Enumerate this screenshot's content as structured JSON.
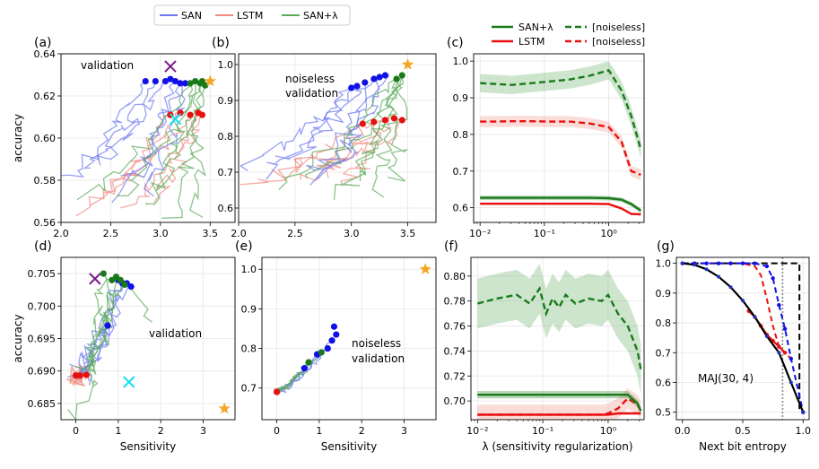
{
  "chart_data": {
    "type": "line",
    "legend_top": [
      {
        "name": "SAN",
        "color": "#6b78f0"
      },
      {
        "name": "LSTM",
        "color": "#f08a80"
      },
      {
        "name": "SAN+λ",
        "color": "#5aaa5a"
      }
    ],
    "colors": {
      "san": "#6b78f0",
      "lstm": "#f08a80",
      "sanl": "#5aaa5a",
      "blue": "#1010e8",
      "red": "#e81010",
      "green": "#1a7a1a",
      "orange": "#f5a623",
      "purple": "#7a1a8a",
      "cyan": "#17e0ee"
    },
    "panels": [
      {
        "id": "a",
        "label": "(a)",
        "annotation": "validation",
        "xlim": [
          2.0,
          3.75
        ],
        "ylim": [
          0.56,
          0.64
        ],
        "xticks": [
          "2.0",
          "2.5",
          "3.0",
          "3.5"
        ],
        "xtick_values": [
          2.0,
          2.5,
          3.0,
          3.5
        ],
        "yticks": [
          "0.56",
          "0.58",
          "0.60",
          "0.62",
          "0.64"
        ],
        "ytick_values": [
          0.56,
          0.58,
          0.6,
          0.62,
          0.64
        ],
        "ylabel": "accuracy",
        "xlabel": "",
        "points_blue": [
          [
            2.85,
            0.627
          ],
          [
            2.95,
            0.627
          ],
          [
            3.05,
            0.627
          ],
          [
            3.15,
            0.627
          ],
          [
            3.2,
            0.626
          ],
          [
            3.25,
            0.626
          ],
          [
            3.1,
            0.628
          ]
        ],
        "points_red": [
          [
            3.1,
            0.611
          ],
          [
            3.2,
            0.612
          ],
          [
            3.3,
            0.611
          ],
          [
            3.38,
            0.612
          ],
          [
            3.42,
            0.611
          ]
        ],
        "points_green": [
          [
            3.35,
            0.627
          ],
          [
            3.4,
            0.626
          ],
          [
            3.45,
            0.625
          ],
          [
            3.3,
            0.626
          ],
          [
            3.42,
            0.627
          ]
        ],
        "star": [
          3.5,
          0.627
        ],
        "x_purple": [
          3.1,
          0.634
        ],
        "x_cyan": [
          3.15,
          0.609
        ]
      },
      {
        "id": "b",
        "label": "(b)",
        "annotation": "noiseless validation",
        "xlim": [
          2.0,
          3.75
        ],
        "ylim": [
          0.56,
          1.03
        ],
        "xticks": [
          "2.0",
          "2.5",
          "3.0",
          "3.5"
        ],
        "xtick_values": [
          2.0,
          2.5,
          3.0,
          3.5
        ],
        "yticks": [
          "0.6",
          "0.7",
          "0.8",
          "0.9",
          "1.0"
        ],
        "ytick_values": [
          0.6,
          0.7,
          0.8,
          0.9,
          1.0
        ],
        "ylabel": "",
        "xlabel": "",
        "points_blue": [
          [
            3.0,
            0.935
          ],
          [
            3.05,
            0.94
          ],
          [
            3.12,
            0.95
          ],
          [
            3.2,
            0.96
          ],
          [
            3.25,
            0.965
          ],
          [
            3.3,
            0.97
          ]
        ],
        "points_red": [
          [
            3.1,
            0.835
          ],
          [
            3.2,
            0.84
          ],
          [
            3.3,
            0.845
          ],
          [
            3.38,
            0.85
          ],
          [
            3.45,
            0.845
          ]
        ],
        "points_green": [
          [
            3.4,
            0.96
          ],
          [
            3.45,
            0.97
          ]
        ],
        "star": [
          3.5,
          1.0
        ],
        "x_purple": null,
        "x_cyan": null
      },
      {
        "id": "c",
        "label": "(c)",
        "type": "lambda",
        "legend": [
          {
            "name": "SAN+λ",
            "style": "solid",
            "color": "#1a7a1a"
          },
          {
            "name": "[noiseless]",
            "style": "dashed",
            "color": "#1a7a1a"
          },
          {
            "name": "LSTM",
            "style": "solid",
            "color": "#e81010"
          },
          {
            "name": "[noiseless]",
            "style": "dashed",
            "color": "#e81010"
          }
        ],
        "xlim_log10": [
          -2.1,
          0.55
        ],
        "ylim": [
          0.56,
          1.02
        ],
        "xticks": [
          "10⁻²",
          "10⁻¹",
          "10⁰"
        ],
        "xtick_values_log10": [
          -2,
          -1,
          0
        ],
        "yticks": [
          "0.6",
          "0.7",
          "0.8",
          "0.9",
          "1.0"
        ],
        "ytick_values": [
          0.6,
          0.7,
          0.8,
          0.9,
          1.0
        ],
        "lambda_log10": [
          -2.0,
          -1.8,
          -1.5,
          -1.2,
          -0.9,
          -0.6,
          -0.3,
          0.0,
          0.2,
          0.35,
          0.5
        ],
        "san_noiseless": [
          0.94,
          0.938,
          0.935,
          0.94,
          0.945,
          0.95,
          0.96,
          0.975,
          0.92,
          0.85,
          0.76
        ],
        "san_noiseless_band": 0.025,
        "lstm_noiseless": [
          0.835,
          0.835,
          0.836,
          0.836,
          0.835,
          0.835,
          0.83,
          0.82,
          0.78,
          0.7,
          0.69
        ],
        "lstm_noiseless_band": 0.015,
        "san_val": [
          0.627,
          0.627,
          0.627,
          0.627,
          0.627,
          0.627,
          0.627,
          0.626,
          0.622,
          0.61,
          0.592
        ],
        "san_val_band": 0.006,
        "lstm_val": [
          0.611,
          0.611,
          0.611,
          0.611,
          0.611,
          0.611,
          0.611,
          0.61,
          0.598,
          0.583,
          0.582
        ],
        "lstm_val_band": 0.003
      },
      {
        "id": "d",
        "label": "(d)",
        "annotation": "validation",
        "xlim": [
          -0.35,
          3.75
        ],
        "ylim": [
          0.6825,
          0.7075
        ],
        "xticks": [
          "0",
          "1",
          "2",
          "3"
        ],
        "xtick_values": [
          0,
          1,
          2,
          3
        ],
        "yticks": [
          "0.685",
          "0.690",
          "0.695",
          "0.700",
          "0.705"
        ],
        "ytick_values": [
          0.685,
          0.69,
          0.695,
          0.7,
          0.705
        ],
        "ylabel": "accuracy",
        "xlabel": "Sensitivity",
        "points_blue": [
          [
            0.75,
            0.697
          ],
          [
            1.0,
            0.704
          ],
          [
            1.1,
            0.7035
          ],
          [
            1.2,
            0.7035
          ],
          [
            1.3,
            0.703
          ]
        ],
        "points_red": [
          [
            0.0,
            0.6893
          ],
          [
            0.1,
            0.6893
          ],
          [
            0.25,
            0.6894
          ]
        ],
        "points_green": [
          [
            0.65,
            0.705
          ],
          [
            0.85,
            0.704
          ],
          [
            0.95,
            0.7045
          ],
          [
            1.05,
            0.704
          ],
          [
            1.15,
            0.7033
          ]
        ],
        "star": [
          3.5,
          0.6842
        ],
        "x_purple": [
          0.45,
          0.7042
        ],
        "x_cyan": [
          1.25,
          0.6883
        ]
      },
      {
        "id": "e",
        "label": "(e)",
        "annotation": "noiseless validation",
        "xlim": [
          -0.35,
          3.75
        ],
        "ylim": [
          0.62,
          1.03
        ],
        "xticks": [
          "0",
          "1",
          "2",
          "3"
        ],
        "xtick_values": [
          0,
          1,
          2,
          3
        ],
        "yticks": [
          "0.7",
          "0.8",
          "0.9",
          "1.0"
        ],
        "ytick_values": [
          0.7,
          0.8,
          0.9,
          1.0
        ],
        "ylabel": "",
        "xlabel": "Sensitivity",
        "points_blue": [
          [
            0.65,
            0.75
          ],
          [
            0.95,
            0.785
          ],
          [
            1.2,
            0.8
          ],
          [
            1.3,
            0.82
          ],
          [
            1.35,
            0.855
          ],
          [
            1.4,
            0.835
          ]
        ],
        "points_red": [
          [
            0.0,
            0.69
          ]
        ],
        "points_green": [
          [
            0.75,
            0.765
          ],
          [
            1.05,
            0.79
          ]
        ],
        "star": [
          3.5,
          1.0
        ],
        "x_purple": null,
        "x_cyan": null
      },
      {
        "id": "f",
        "label": "(f)",
        "type": "lambda",
        "xlim_log10": [
          -2.1,
          0.55
        ],
        "ylim": [
          0.685,
          0.815
        ],
        "xticks": [
          "10⁻²",
          "10⁻¹",
          "10⁰"
        ],
        "xtick_values_log10": [
          -2,
          -1,
          0
        ],
        "yticks": [
          "0.70",
          "0.72",
          "0.74",
          "0.76",
          "0.78",
          "0.80"
        ],
        "ytick_values": [
          0.7,
          0.72,
          0.74,
          0.76,
          0.78,
          0.8
        ],
        "xlabel": "λ (sensitivity regularization)",
        "lambda_log10": [
          -2.0,
          -1.7,
          -1.4,
          -1.2,
          -1.05,
          -0.95,
          -0.85,
          -0.75,
          -0.65,
          -0.5,
          -0.3,
          -0.1,
          0.0,
          0.15,
          0.3,
          0.45,
          0.5
        ],
        "san_noiseless": [
          0.778,
          0.782,
          0.785,
          0.778,
          0.79,
          0.77,
          0.782,
          0.775,
          0.785,
          0.778,
          0.782,
          0.78,
          0.785,
          0.77,
          0.76,
          0.74,
          0.725
        ],
        "san_noiseless_band": 0.02,
        "san_val": [
          0.705,
          0.705,
          0.705,
          0.705,
          0.705,
          0.705,
          0.705,
          0.705,
          0.705,
          0.705,
          0.705,
          0.705,
          0.705,
          0.705,
          0.705,
          0.698,
          0.692
        ],
        "san_val_band": 0.003,
        "lstm_noiseless": [
          0.689,
          0.689,
          0.689,
          0.689,
          0.689,
          0.689,
          0.689,
          0.689,
          0.689,
          0.689,
          0.689,
          0.689,
          0.69,
          0.694,
          0.702,
          0.697,
          0.692
        ],
        "lstm_noiseless_band": 0.008,
        "lstm_val": [
          0.689,
          0.689,
          0.689,
          0.689,
          0.689,
          0.689,
          0.689,
          0.689,
          0.689,
          0.689,
          0.689,
          0.689,
          0.689,
          0.69,
          0.69,
          0.69,
          0.69
        ],
        "lstm_val_band": 0.001
      },
      {
        "id": "g",
        "label": "(g)",
        "type": "entropy",
        "annotation": "MAJ(30, 4)",
        "xlim": [
          -0.05,
          1.05
        ],
        "ylim": [
          0.475,
          1.02
        ],
        "xticks": [
          "0.0",
          "0.5",
          "1.0"
        ],
        "xtick_values": [
          0.0,
          0.5,
          1.0
        ],
        "yticks": [
          "0.5",
          "0.6",
          "0.7",
          "0.8",
          "0.9",
          "1.0"
        ],
        "ytick_values": [
          0.5,
          0.6,
          0.7,
          0.8,
          0.9,
          1.0
        ],
        "xlabel": "Next bit entropy",
        "vline_x": 0.83,
        "black_solid": {
          "x": [
            0,
            0.1,
            0.2,
            0.3,
            0.4,
            0.5,
            0.6,
            0.7,
            0.8,
            0.9,
            1.0
          ],
          "y": [
            1.0,
            0.995,
            0.98,
            0.955,
            0.92,
            0.875,
            0.82,
            0.755,
            0.7,
            0.6,
            0.5
          ]
        },
        "black_dashed": {
          "x": [
            0,
            0.97,
            0.97
          ],
          "y": [
            1.0,
            1.0,
            0.5
          ]
        },
        "blue_dashed": {
          "x": [
            0,
            0.1,
            0.2,
            0.3,
            0.4,
            0.5,
            0.6,
            0.7,
            0.75,
            0.8,
            0.85,
            0.9,
            1.0
          ],
          "y": [
            1.0,
            1.0,
            1.0,
            1.0,
            1.0,
            1.0,
            1.0,
            0.99,
            0.95,
            0.86,
            0.78,
            0.68,
            0.5
          ]
        },
        "red_dashed": {
          "x": [
            0,
            0.5,
            0.6,
            0.65,
            0.7,
            0.75,
            0.8,
            0.85,
            0.9
          ],
          "y": [
            1.0,
            1.0,
            0.99,
            0.96,
            0.88,
            0.79,
            0.72,
            0.7,
            0.68
          ]
        },
        "red_solid": {
          "x": [
            0.55,
            0.6,
            0.65,
            0.7,
            0.75,
            0.8,
            0.85
          ],
          "y": [
            0.84,
            0.82,
            0.79,
            0.76,
            0.74,
            0.72,
            0.7
          ]
        }
      }
    ]
  }
}
